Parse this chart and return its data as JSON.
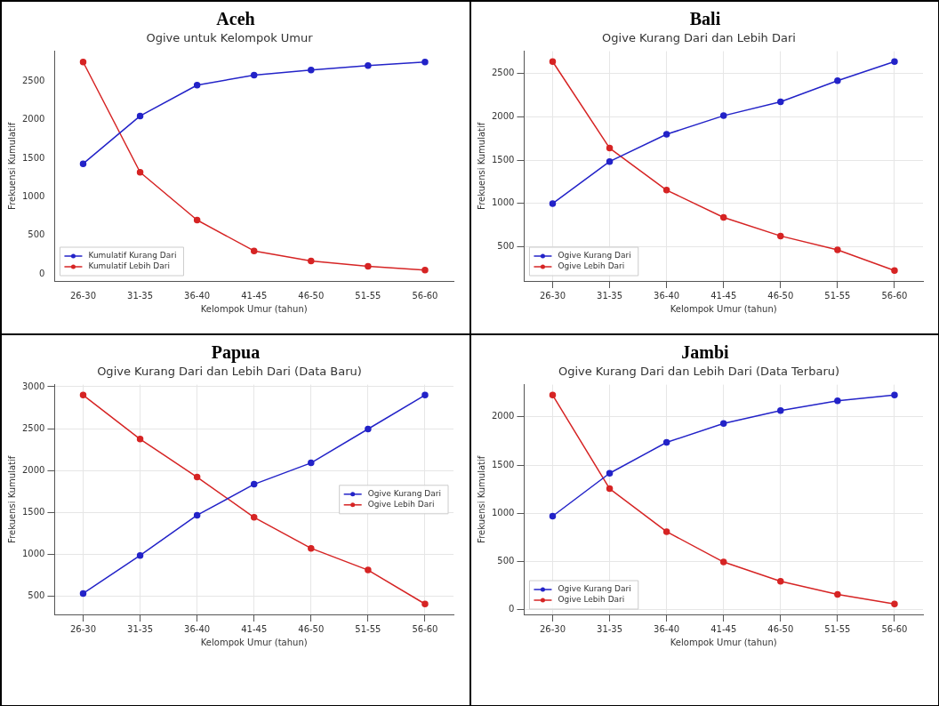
{
  "chart_data": [
    {
      "type": "line",
      "title": "Aceh",
      "subtitle": "Ogive untuk Kelompok Umur",
      "xlabel": "Kelompok Umur (tahun)",
      "ylabel": "Frekuensi Kumulatif",
      "categories": [
        "26-30",
        "31-35",
        "36-40",
        "41-45",
        "46-50",
        "51-55",
        "56-60"
      ],
      "series": [
        {
          "name": "Kumulatif Kurang Dari",
          "color": "#2323c8",
          "values": [
            1430,
            2050,
            2450,
            2580,
            2645,
            2705,
            2750
          ]
        },
        {
          "name": "Kumulatif Lebih Dari",
          "color": "#d62424",
          "values": [
            2750,
            1320,
            700,
            300,
            170,
            100,
            50
          ]
        }
      ],
      "ylim": [
        -90,
        2890
      ],
      "yticks": [
        0,
        500,
        1000,
        1500,
        2000,
        2500
      ],
      "grid": false,
      "legend": "bottom left",
      "marker": "circle",
      "line_style": "solid"
    },
    {
      "type": "line",
      "title": "Bali",
      "subtitle": "Ogive Kurang Dari dan Lebih Dari",
      "xlabel": "Kelompok Umur (tahun)",
      "ylabel": "Frekuensi Kumulatif",
      "categories": [
        "26-30",
        "31-35",
        "36-40",
        "41-45",
        "46-50",
        "51-55",
        "56-60"
      ],
      "series": [
        {
          "name": "Ogive Kurang Dari",
          "color": "#2323c8",
          "values": [
            1000,
            1485,
            1800,
            2015,
            2175,
            2420,
            2640
          ]
        },
        {
          "name": "Ogive Lebih Dari",
          "color": "#d62424",
          "values": [
            2640,
            1640,
            1155,
            840,
            625,
            465,
            225
          ]
        }
      ],
      "ylim": [
        105,
        2760
      ],
      "yticks": [
        500,
        1000,
        1500,
        2000,
        2500
      ],
      "grid": true,
      "legend": "bottom left",
      "marker": "circle",
      "line_style": "solid"
    },
    {
      "type": "line",
      "title": "Papua",
      "subtitle": "Ogive Kurang Dari dan Lebih Dari (Data Baru)",
      "xlabel": "Kelompok Umur (tahun)",
      "ylabel": "Frekuensi Kumulatif",
      "categories": [
        "26-30",
        "31-35",
        "36-40",
        "41-45",
        "46-50",
        "51-55",
        "56-60"
      ],
      "series": [
        {
          "name": "Ogive Kurang Dari",
          "color": "#2323c8",
          "values": [
            530,
            985,
            1465,
            1835,
            2090,
            2495,
            2900
          ]
        },
        {
          "name": "Ogive Lebih Dari",
          "color": "#d62424",
          "values": [
            2900,
            2375,
            1920,
            1440,
            1070,
            810,
            405
          ]
        }
      ],
      "ylim": [
        280,
        3025
      ],
      "yticks": [
        500,
        1000,
        1500,
        2000,
        2500,
        3000
      ],
      "grid": true,
      "legend": "right",
      "marker": "circle",
      "line_style": "solid"
    },
    {
      "type": "line",
      "title": "Jambi",
      "subtitle": "Ogive Kurang Dari dan Lebih Dari (Data Terbaru)",
      "xlabel": "Kelompok Umur (tahun)",
      "ylabel": "Frekuensi Kumulatif",
      "categories": [
        "26-30",
        "31-35",
        "36-40",
        "41-45",
        "46-50",
        "51-55",
        "56-60"
      ],
      "series": [
        {
          "name": "Ogive Kurang Dari",
          "color": "#2323c8",
          "values": [
            970,
            1415,
            1735,
            1930,
            2065,
            2165,
            2225
          ]
        },
        {
          "name": "Ogive Lebih Dari",
          "color": "#d62424",
          "values": [
            2225,
            1255,
            810,
            495,
            295,
            160,
            60
          ]
        }
      ],
      "ylim": [
        -48,
        2333
      ],
      "yticks": [
        0,
        500,
        1000,
        1500,
        2000
      ],
      "grid": true,
      "legend": "bottom left",
      "marker": "circle",
      "line_style": "solid"
    }
  ]
}
